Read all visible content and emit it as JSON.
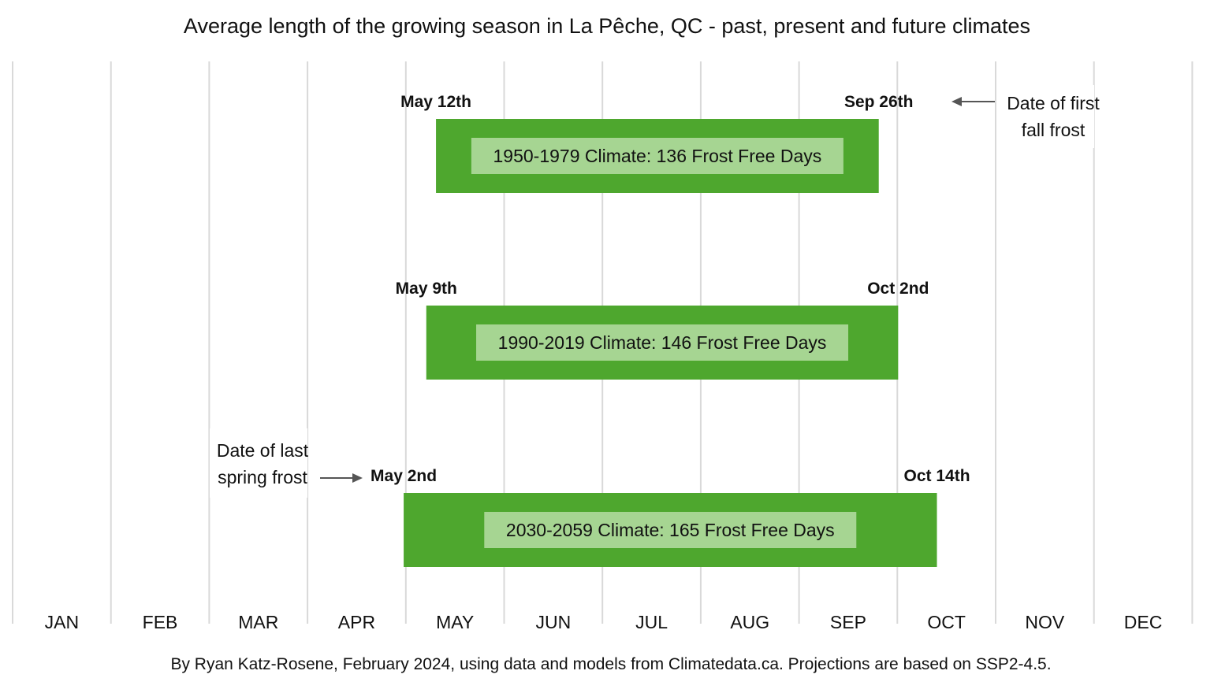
{
  "chart_data": {
    "type": "bar",
    "title": "Average length of the growing season in La Pêche, QC - past, present and future climates",
    "x_axis": {
      "categories": [
        "JAN",
        "FEB",
        "MAR",
        "APR",
        "MAY",
        "JUN",
        "JUL",
        "AUG",
        "SEP",
        "OCT",
        "NOV",
        "DEC"
      ],
      "range_day_of_year": [
        1,
        366
      ]
    },
    "grid": "vertical month boundaries",
    "series": [
      {
        "name": "1950-1979 Climate",
        "label": "1950-1979 Climate: 136 Frost Free Days",
        "frost_free_days": 136,
        "start_label": "May 12th",
        "end_label": "Sep 26th",
        "start_day": 132,
        "end_day": 269
      },
      {
        "name": "1990-2019 Climate",
        "label": "1990-2019 Climate: 146 Frost Free Days",
        "frost_free_days": 146,
        "start_label": "May 9th",
        "end_label": "Oct 2nd",
        "start_day": 129,
        "end_day": 275
      },
      {
        "name": "2030-2059 Climate",
        "label": "2030-2059 Climate: 165 Frost Free Days",
        "frost_free_days": 165,
        "start_label": "May 2nd",
        "end_label": "Oct 14th",
        "start_day": 122,
        "end_day": 287
      }
    ],
    "annotations": {
      "fall_frost": [
        "Date of first",
        "fall frost"
      ],
      "spring_frost": [
        "Date of last",
        "spring frost"
      ]
    },
    "colors": {
      "bar": "#4ea72e",
      "label_box": "#a6d592",
      "grid": "#d9d9d9",
      "arrow": "#555555"
    }
  },
  "footer": "By Ryan Katz-Rosene, February 2024, using data and models from Climatedata.ca. Projections are based on SSP2-4.5."
}
